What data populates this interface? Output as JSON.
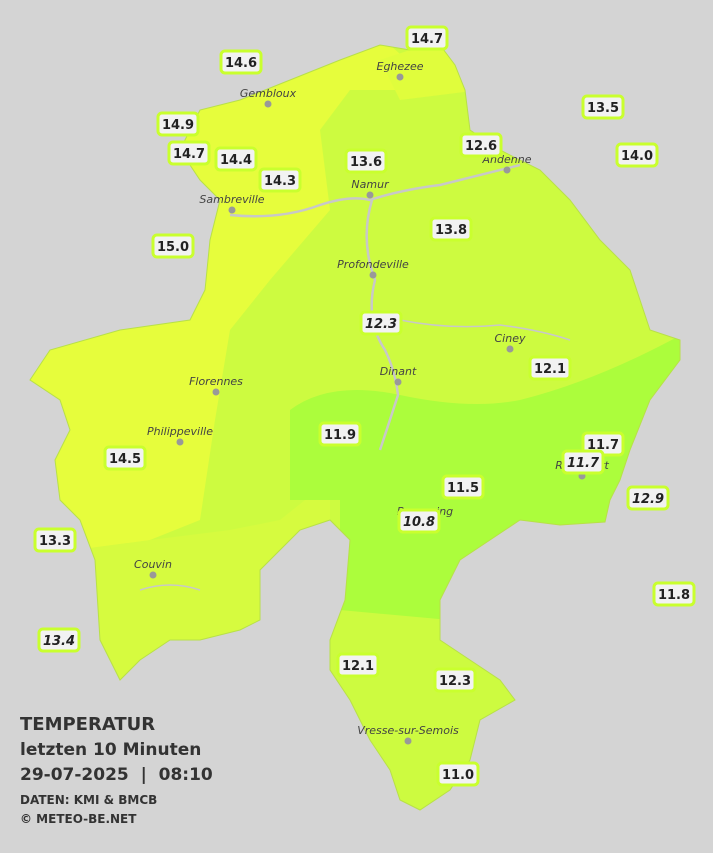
{
  "title": {
    "heading": "TEMPERATUR",
    "period": "letzten 10 Minuten",
    "datetime": "29-07-2025  |  08:10",
    "source": "DATEN: KMI & BMCB",
    "copyright": "© METEO-BE.NET"
  },
  "places": [
    "Eghezee",
    "Gembloux",
    "Andenne",
    "Namur",
    "Sambreville",
    "Profondeville",
    "Ciney",
    "Dinant",
    "Florennes",
    "Philippeville",
    "Rochefort",
    "Beauraing",
    "Couvin",
    "Vresse-sur-Semois"
  ],
  "stations": [
    {
      "value": "14.7",
      "italic": false
    },
    {
      "value": "14.6",
      "italic": false
    },
    {
      "value": "13.5",
      "italic": false
    },
    {
      "value": "14.9",
      "italic": false
    },
    {
      "value": "12.6",
      "italic": false
    },
    {
      "value": "14.0",
      "italic": false
    },
    {
      "value": "14.7",
      "italic": false
    },
    {
      "value": "14.4",
      "italic": false
    },
    {
      "value": "13.6",
      "italic": false
    },
    {
      "value": "14.3",
      "italic": false
    },
    {
      "value": "13.8",
      "italic": false
    },
    {
      "value": "15.0",
      "italic": false
    },
    {
      "value": "12.3",
      "italic": true
    },
    {
      "value": "12.1",
      "italic": false
    },
    {
      "value": "11.7",
      "italic": false
    },
    {
      "value": "11.7",
      "italic": true
    },
    {
      "value": "11.9",
      "italic": false
    },
    {
      "value": "14.5",
      "italic": false
    },
    {
      "value": "11.5",
      "italic": false
    },
    {
      "value": "12.9",
      "italic": true
    },
    {
      "value": "10.8",
      "italic": true
    },
    {
      "value": "13.3",
      "italic": false
    },
    {
      "value": "11.8",
      "italic": false
    },
    {
      "value": "13.4",
      "italic": true
    },
    {
      "value": "12.1",
      "italic": false
    },
    {
      "value": "12.3",
      "italic": false
    },
    {
      "value": "11.0",
      "italic": false
    }
  ]
}
